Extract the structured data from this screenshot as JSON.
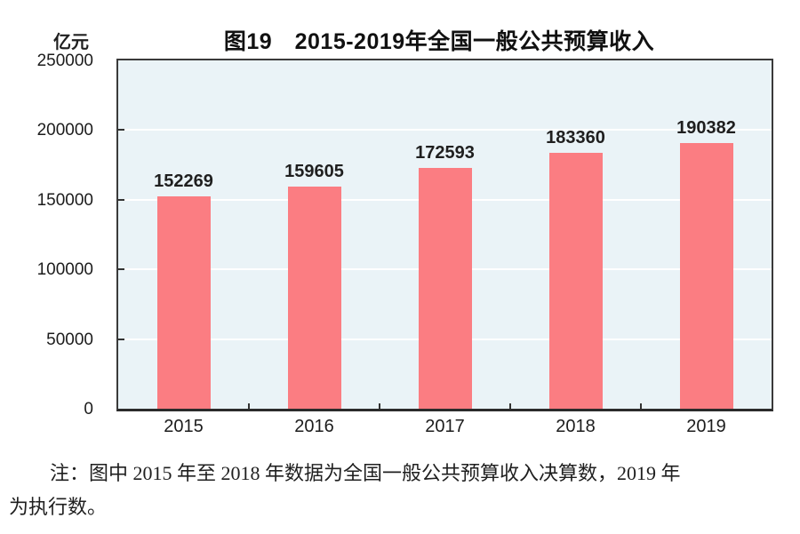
{
  "figure": {
    "unit_label": "亿元",
    "title": "图19　2015-2019年全国一般公共预算收入"
  },
  "chart_data": {
    "type": "bar",
    "title": "图19　2015-2019年全国一般公共预算收入",
    "ylabel": "亿元",
    "xlabel": "",
    "categories": [
      "2015",
      "2016",
      "2017",
      "2018",
      "2019"
    ],
    "values": [
      152269,
      159605,
      172593,
      183360,
      190382
    ],
    "data_labels": [
      "152269",
      "159605",
      "172593",
      "183360",
      "190382"
    ],
    "ylim": [
      0,
      250000
    ],
    "yticks": [
      0,
      50000,
      100000,
      150000,
      200000,
      250000
    ],
    "ytick_labels": [
      "0",
      "50000",
      "100000",
      "150000",
      "200000",
      "250000"
    ],
    "grid": true,
    "legend": "none",
    "colors": {
      "bar": "#FB7D82",
      "plot_bg": "#EAF3F7",
      "gridline": "#FFFFFF",
      "axis": "#333333",
      "text": "#1F1F1F"
    }
  },
  "note": {
    "lines": [
      "注：图中 2015 年至 2018 年数据为全国一般公共预算收入决算数，2019 年",
      "为执行数。"
    ]
  }
}
